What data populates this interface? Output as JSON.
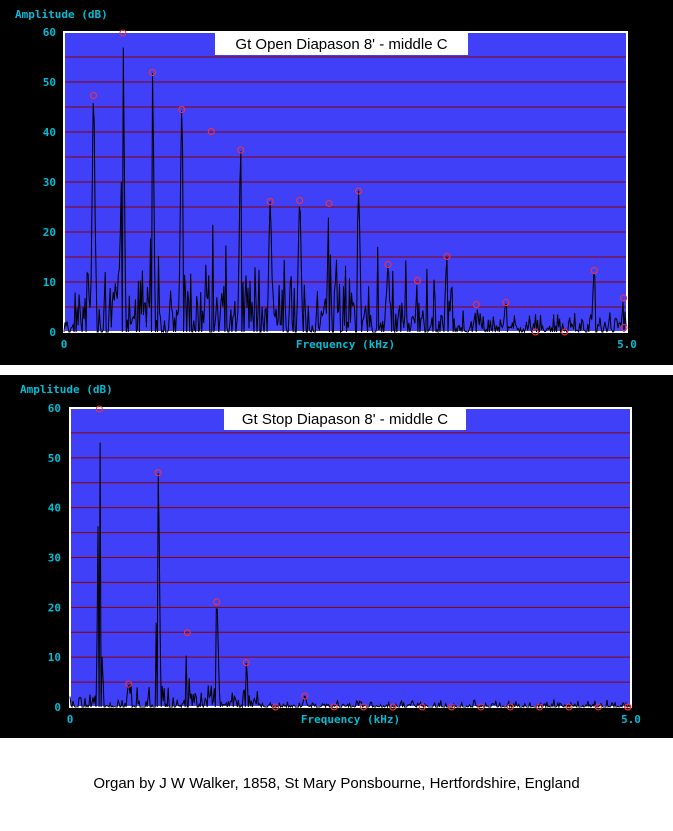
{
  "colors": {
    "plot_background": "#4040f8",
    "frame": "#ffffff",
    "gridline": "#8b0000",
    "trace": "#000000",
    "peak_marker": "#ff3030",
    "axis_text": "#00bcd4",
    "panel_background": "#000000"
  },
  "caption": "Organ by J W Walker, 1858, St Mary Ponsbourne, Hertfordshire, England",
  "chart_data": [
    {
      "type": "line",
      "title": "Gt Open Diapason 8' - middle C",
      "xlabel": "Frequency (kHz)",
      "ylabel": "Amplitude (dB)",
      "xlim": [
        0,
        5.0
      ],
      "ylim": [
        0,
        60
      ],
      "y_ticks": [
        "0",
        "10",
        "20",
        "30",
        "40",
        "50",
        "60"
      ],
      "x_ticks": [
        {
          "value": 0,
          "label": "0"
        },
        {
          "value": 5.0,
          "label": "5.0"
        }
      ],
      "grid": "horizontal",
      "peaks": [
        {
          "x": 0.262,
          "y": 47.3
        },
        {
          "x": 0.523,
          "y": 59.8
        },
        {
          "x": 0.785,
          "y": 51.9
        },
        {
          "x": 1.046,
          "y": 44.5
        },
        {
          "x": 1.308,
          "y": 40.1
        },
        {
          "x": 1.57,
          "y": 36.4
        },
        {
          "x": 1.831,
          "y": 26.1
        },
        {
          "x": 2.093,
          "y": 26.3
        },
        {
          "x": 2.354,
          "y": 25.7
        },
        {
          "x": 2.616,
          "y": 28.2
        },
        {
          "x": 2.878,
          "y": 13.5
        },
        {
          "x": 3.139,
          "y": 10.3
        },
        {
          "x": 3.401,
          "y": 15.1
        },
        {
          "x": 3.662,
          "y": 5.5
        },
        {
          "x": 3.924,
          "y": 5.9
        },
        {
          "x": 4.186,
          "y": 0.0
        },
        {
          "x": 4.447,
          "y": 0.0
        },
        {
          "x": 4.709,
          "y": 12.3
        },
        {
          "x": 4.97,
          "y": 6.8
        },
        {
          "x": 5.231,
          "y": 0.9
        }
      ]
    },
    {
      "type": "line",
      "title": "Gt Stop Diapason 8' - middle C",
      "xlabel": "Frequency (kHz)",
      "ylabel": "Amplitude (dB)",
      "xlim": [
        0,
        5.0
      ],
      "ylim": [
        0,
        60
      ],
      "y_ticks": [
        "0",
        "10",
        "20",
        "30",
        "40",
        "50",
        "60"
      ],
      "x_ticks": [
        {
          "value": 0,
          "label": "0"
        },
        {
          "value": 5.0,
          "label": "5.0"
        }
      ],
      "grid": "horizontal",
      "peaks": [
        {
          "x": 0.262,
          "y": 59.8
        },
        {
          "x": 0.523,
          "y": 4.6
        },
        {
          "x": 0.785,
          "y": 47.0
        },
        {
          "x": 1.046,
          "y": 14.9
        },
        {
          "x": 1.308,
          "y": 21.1
        },
        {
          "x": 1.57,
          "y": 8.9
        },
        {
          "x": 1.831,
          "y": 0.0
        },
        {
          "x": 2.093,
          "y": 2.2
        },
        {
          "x": 2.354,
          "y": 0.0
        },
        {
          "x": 2.616,
          "y": 0.0
        },
        {
          "x": 2.878,
          "y": 0.0
        },
        {
          "x": 3.139,
          "y": 0.0
        },
        {
          "x": 3.401,
          "y": 0.0
        },
        {
          "x": 3.662,
          "y": 0.0
        },
        {
          "x": 3.924,
          "y": 0.0
        },
        {
          "x": 4.186,
          "y": 0.0
        },
        {
          "x": 4.447,
          "y": 0.0
        },
        {
          "x": 4.709,
          "y": 0.0
        },
        {
          "x": 4.97,
          "y": 0.0
        },
        {
          "x": 5.231,
          "y": 0.0
        }
      ]
    }
  ]
}
